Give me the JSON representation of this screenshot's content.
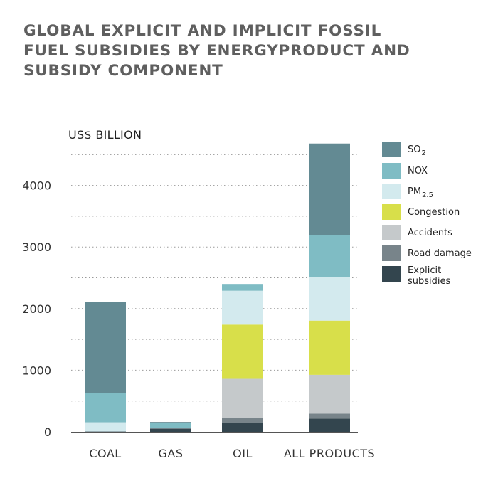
{
  "title_lines": [
    "GLOBAL EXPLICIT AND IMPLICIT FOSSIL",
    "FUEL SUBSIDIES BY ENERGYPRODUCT AND",
    "SUBSIDY COMPONENT"
  ],
  "chart_data": {
    "type": "bar",
    "stacked": true,
    "title": "GLOBAL EXPLICIT AND IMPLICIT FOSSIL FUEL SUBSIDIES BY ENERGYPRODUCT AND SUBSIDY COMPONENT",
    "ylabel": "US$ BILLION",
    "xlabel": "",
    "categories": [
      "COAL",
      "GAS",
      "OIL",
      "ALL PRODUCTS"
    ],
    "ylim": [
      0,
      4700
    ],
    "yticks": [
      "0",
      "1000",
      "2000",
      "3000",
      "4000"
    ],
    "grid": true,
    "legend_position": "right",
    "series": [
      {
        "name": "Explicit subsidies",
        "color": "#33454e",
        "values": [
          5,
          55,
          150,
          215
        ]
      },
      {
        "name": "Road damage",
        "color": "#78848a",
        "values": [
          0,
          0,
          80,
          80
        ]
      },
      {
        "name": "Accidents",
        "color": "#c5c9cb",
        "values": [
          0,
          0,
          630,
          630
        ]
      },
      {
        "name": "Congestion",
        "color": "#d8df4a",
        "values": [
          0,
          0,
          880,
          880
        ]
      },
      {
        "name": "PM2.5",
        "color": "#d3eaee",
        "values": [
          150,
          5,
          550,
          710
        ]
      },
      {
        "name": "NOX",
        "color": "#7fbcc4",
        "values": [
          475,
          90,
          110,
          675
        ]
      },
      {
        "name": "SO2",
        "color": "#638a93",
        "values": [
          1475,
          10,
          0,
          1490
        ]
      }
    ]
  },
  "legend": [
    {
      "label": "SO",
      "sub": "2",
      "color": "#638a93"
    },
    {
      "label": "NOX",
      "sub": "",
      "color": "#7fbcc4"
    },
    {
      "label": "PM",
      "sub": "2.5",
      "color": "#d3eaee"
    },
    {
      "label": "Congestion",
      "sub": "",
      "color": "#d8df4a"
    },
    {
      "label": "Accidents",
      "sub": "",
      "color": "#c5c9cb"
    },
    {
      "label": "Road damage",
      "sub": "",
      "color": "#78848a"
    },
    {
      "label": "Explicit subsidies",
      "sub": "",
      "color": "#33454e"
    }
  ]
}
